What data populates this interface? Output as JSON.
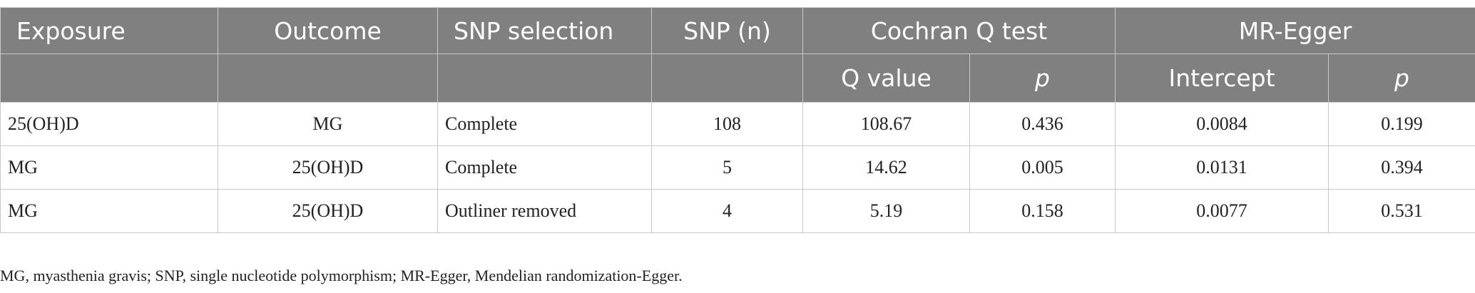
{
  "table": {
    "header_top": [
      "Exposure",
      "Outcome",
      "SNP selection",
      "SNP (n)",
      "Cochran Q test",
      "MR-Egger"
    ],
    "header_sub": [
      "Q value",
      "p",
      "Intercept",
      "p"
    ],
    "rows": [
      [
        "25(OH)D",
        "MG",
        "Complete",
        "108",
        "108.67",
        "0.436",
        "0.0084",
        "0.199"
      ],
      [
        "MG",
        "25(OH)D",
        "Complete",
        "5",
        "14.62",
        "0.005",
        "0.0131",
        "0.394"
      ],
      [
        "MG",
        "25(OH)D",
        "Outliner removed",
        "4",
        "5.19",
        "0.158",
        "0.0077",
        "0.531"
      ]
    ]
  },
  "footnote": "MG, myasthenia gravis; SNP, single nucleotide polymorphism; MR-Egger, Mendelian randomization-Egger."
}
